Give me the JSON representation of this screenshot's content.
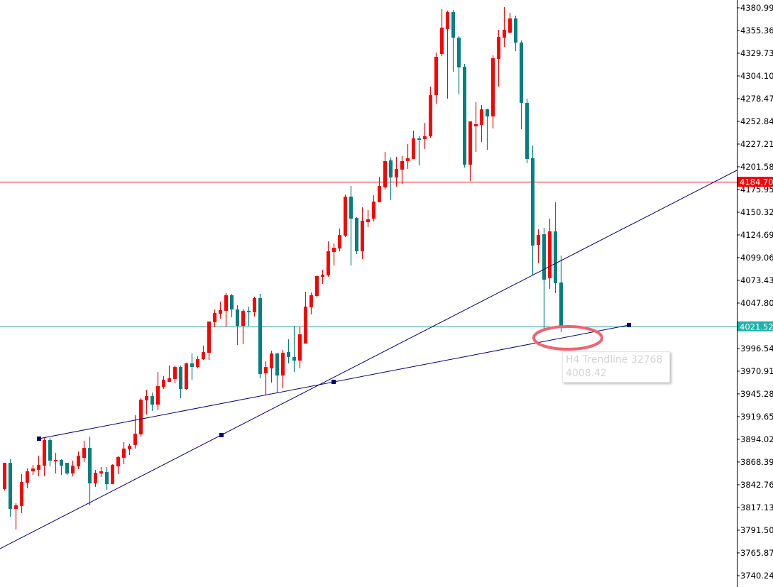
{
  "chart_data": {
    "type": "candlestick",
    "title": "",
    "colors": {
      "bull": "#ff0000",
      "bear": "#008080",
      "trendline": "#000080",
      "highlight": "#f2636f"
    },
    "candle_fields": [
      "open",
      "high",
      "low",
      "close"
    ],
    "candles": [
      [
        3837.9,
        3867.5,
        3836.3,
        3867.5
      ],
      [
        3867.5,
        3871.6,
        3806.7,
        3815.5
      ],
      [
        3815.5,
        3821.9,
        3792.3,
        3819.5
      ],
      [
        3818.7,
        3854.7,
        3810.7,
        3845.9
      ],
      [
        3845.1,
        3861.1,
        3838.7,
        3857.9
      ],
      [
        3857.9,
        3865.1,
        3853.9,
        3861.1
      ],
      [
        3859.5,
        3875.6,
        3852.3,
        3865.1
      ],
      [
        3864.3,
        3895.6,
        3852.3,
        3893.2
      ],
      [
        3893.2,
        3895.6,
        3863.5,
        3870.0
      ],
      [
        3869.2,
        3878.8,
        3855.5,
        3870.8
      ],
      [
        3870.8,
        3871.6,
        3853.9,
        3864.3
      ],
      [
        3867.5,
        3867.5,
        3853.9,
        3855.5
      ],
      [
        3855.5,
        3870.0,
        3852.3,
        3864.3
      ],
      [
        3863.5,
        3880.4,
        3860.3,
        3875.6
      ],
      [
        3873.2,
        3892.4,
        3868.4,
        3884.4
      ],
      [
        3884.4,
        3897.2,
        3819.5,
        3844.3
      ],
      [
        3844.3,
        3859.5,
        3840.3,
        3856.3
      ],
      [
        3855.5,
        3862.7,
        3851.5,
        3857.9
      ],
      [
        3857.1,
        3862.7,
        3837.1,
        3843.5
      ],
      [
        3843.5,
        3865.9,
        3843.5,
        3865.1
      ],
      [
        3863.5,
        3875.6,
        3854.7,
        3874.0
      ],
      [
        3873.2,
        3890.8,
        3865.9,
        3883.6
      ],
      [
        3882.8,
        3889.2,
        3876.4,
        3886.8
      ],
      [
        3887.6,
        3921.2,
        3883.6,
        3900.4
      ],
      [
        3899.6,
        3940.4,
        3897.2,
        3938.8
      ],
      [
        3938.0,
        3950.0,
        3922.0,
        3942.8
      ],
      [
        3942.8,
        3946.8,
        3926.0,
        3933.2
      ],
      [
        3933.2,
        3970.1,
        3926.8,
        3954.1
      ],
      [
        3953.3,
        3965.3,
        3950.9,
        3961.3
      ],
      [
        3958.9,
        3977.3,
        3958.9,
        3962.9
      ],
      [
        3962.1,
        3977.3,
        3957.3,
        3975.7
      ],
      [
        3975.7,
        3977.3,
        3940.4,
        3950.9
      ],
      [
        3950.9,
        3980.5,
        3950.0,
        3979.7
      ],
      [
        3979.7,
        3990.9,
        3961.3,
        3975.7
      ],
      [
        3975.7,
        3987.7,
        3974.1,
        3984.5
      ],
      [
        3984.5,
        3999.7,
        3983.7,
        3992.5
      ],
      [
        3991.7,
        4027.0,
        3983.7,
        4027.0
      ],
      [
        4026.2,
        4040.6,
        4020.5,
        4036.6
      ],
      [
        4035.8,
        4049.4,
        4030.2,
        4039.8
      ],
      [
        4039.0,
        4059.0,
        4020.5,
        4056.6
      ],
      [
        4056.6,
        4058.2,
        4031.8,
        4040.6
      ],
      [
        4040.6,
        4045.4,
        4000.5,
        4022.1
      ],
      [
        4022.1,
        4041.4,
        4001.3,
        4039.0
      ],
      [
        4039.0,
        4043.8,
        4022.1,
        4037.4
      ],
      [
        4037.4,
        4055.0,
        4032.6,
        4053.4
      ],
      [
        4053.4,
        4058.2,
        3962.9,
        3967.7
      ],
      [
        3968.5,
        3982.1,
        3944.4,
        3975.7
      ],
      [
        3974.1,
        3994.1,
        3958.1,
        3990.9
      ],
      [
        3990.9,
        3991.7,
        3946.0,
        3966.1
      ],
      [
        3966.1,
        3994.9,
        3951.7,
        3991.7
      ],
      [
        3992.5,
        4006.9,
        3979.7,
        3986.9
      ],
      [
        3986.9,
        4022.1,
        3970.1,
        3982.9
      ],
      [
        3982.9,
        4021.3,
        3974.1,
        4012.5
      ],
      [
        4002.1,
        4060.6,
        4002.1,
        4043.8
      ],
      [
        4043.0,
        4059.8,
        4035.0,
        4056.6
      ],
      [
        4055.8,
        4079.0,
        4054.2,
        4078.2
      ],
      [
        4077.4,
        4085.4,
        4069.4,
        4079.8
      ],
      [
        4079.0,
        4117.5,
        4077.4,
        4106.2
      ],
      [
        4105.4,
        4115.1,
        4090.2,
        4110.2
      ],
      [
        4109.4,
        4131.9,
        4106.2,
        4124.7
      ],
      [
        4123.9,
        4170.3,
        4122.3,
        4167.9
      ],
      [
        4167.9,
        4179.9,
        4090.2,
        4143.1
      ],
      [
        4143.9,
        4144.7,
        4103.0,
        4106.2
      ],
      [
        4106.2,
        4155.9,
        4097.4,
        4140.7
      ],
      [
        4139.1,
        4152.7,
        4133.5,
        4142.3
      ],
      [
        4143.1,
        4169.5,
        4139.9,
        4162.3
      ],
      [
        4161.5,
        4190.3,
        4161.5,
        4179.9
      ],
      [
        4178.3,
        4218.4,
        4175.9,
        4208.0
      ],
      [
        4208.8,
        4212.0,
        4163.9,
        4189.5
      ],
      [
        4189.5,
        4212.8,
        4179.1,
        4199.2
      ],
      [
        4198.4,
        4213.6,
        4182.3,
        4208.0
      ],
      [
        4208.0,
        4227.2,
        4199.2,
        4211.2
      ],
      [
        4210.4,
        4242.4,
        4210.4,
        4233.6
      ],
      [
        4233.6,
        4236.0,
        4203.2,
        4232.0
      ],
      [
        4232.8,
        4251.2,
        4221.6,
        4236.0
      ],
      [
        4236.0,
        4292.1,
        4234.4,
        4282.5
      ],
      [
        4282.5,
        4330.5,
        4272.9,
        4325.7
      ],
      [
        4328.9,
        4379.4,
        4326.5,
        4358.6
      ],
      [
        4357.0,
        4377.8,
        4278.5,
        4376.2
      ],
      [
        4376.2,
        4378.6,
        4308.9,
        4347.3
      ],
      [
        4347.3,
        4348.9,
        4283.3,
        4313.7
      ],
      [
        4314.5,
        4317.7,
        4200.8,
        4204.0
      ],
      [
        4204.0,
        4252.8,
        4185.5,
        4252.8
      ],
      [
        4247.2,
        4274.5,
        4218.4,
        4249.6
      ],
      [
        4248.8,
        4271.3,
        4229.6,
        4266.4
      ],
      [
        4266.4,
        4267.2,
        4220.8,
        4258.4
      ],
      [
        4258.4,
        4327.3,
        4244.8,
        4324.1
      ],
      [
        4323.3,
        4356.2,
        4292.1,
        4348.1
      ],
      [
        4347.3,
        4381.8,
        4336.9,
        4356.2
      ],
      [
        4353.0,
        4375.4,
        4352.2,
        4369.0
      ],
      [
        4369.0,
        4372.2,
        4332.1,
        4341.7
      ],
      [
        4341.7,
        4344.1,
        4244.0,
        4273.7
      ],
      [
        4273.7,
        4278.5,
        4205.6,
        4210.4
      ],
      [
        4211.2,
        4225.6,
        4079.0,
        4112.7
      ],
      [
        4113.5,
        4131.1,
        4092.6,
        4124.7
      ],
      [
        4125.5,
        4132.7,
        4016.5,
        4074.2
      ],
      [
        4075.8,
        4143.1,
        4063.8,
        4128.7
      ],
      [
        4128.7,
        4161.5,
        4059.0,
        4070.2
      ],
      [
        4071.0,
        4101.4,
        4015.0,
        4021.5
      ]
    ],
    "y_axis": {
      "range": [
        3737.0,
        4389.8
      ],
      "ticks": [
        "4380.99",
        "4355.36",
        "4329.73",
        "4304.10",
        "4278.47",
        "4252.84",
        "4227.21",
        "4201.58",
        "4175.95",
        "4150.32",
        "4124.69",
        "4099.06",
        "4073.43",
        "4047.80",
        "3996.54",
        "3970.91",
        "3945.28",
        "3919.65",
        "3894.02",
        "3868.39",
        "3842.76",
        "3817.13",
        "3791.50",
        "3765.87",
        "3740.24"
      ]
    },
    "hlines": [
      {
        "value": 4184.7,
        "label": "4184.70",
        "color": "#ff0000"
      },
      {
        "value": 4021.52,
        "label": "4021.52",
        "color": "#20b2aa"
      }
    ],
    "trendline_tooltip": {
      "line1": "H4 Trendline 32768",
      "line2": "4008.42"
    }
  }
}
